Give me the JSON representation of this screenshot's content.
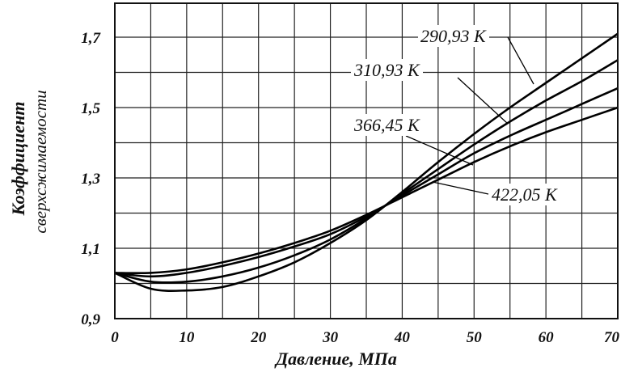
{
  "chart_data": {
    "type": "line",
    "xlabel": "Давление, МПа",
    "ylabel_line1": "Коэффициент",
    "ylabel_line2": "сверхсжимаемости",
    "xlim": [
      0,
      70
    ],
    "ylim": [
      0.9,
      1.75
    ],
    "xticks": [
      0,
      10,
      20,
      30,
      40,
      50,
      60,
      70
    ],
    "xtick_labels": [
      "0",
      "10",
      "20",
      "30",
      "40",
      "50",
      "60",
      "70"
    ],
    "yticks": [
      0.9,
      1.1,
      1.3,
      1.5,
      1.7
    ],
    "ytick_labels": [
      "0,9",
      "1,1",
      "1,3",
      "1,5",
      "1,7"
    ],
    "grid": true,
    "x": [
      0,
      5,
      10,
      15,
      20,
      25,
      30,
      35,
      40,
      45,
      50,
      55,
      60,
      65,
      70
    ],
    "series": [
      {
        "name": "290,93 К",
        "values": [
          1.03,
          0.985,
          0.98,
          0.99,
          1.02,
          1.06,
          1.115,
          1.18,
          1.26,
          1.345,
          1.425,
          1.5,
          1.57,
          1.64,
          1.71
        ]
      },
      {
        "name": "310,93 К",
        "values": [
          1.03,
          1.005,
          1.005,
          1.02,
          1.045,
          1.08,
          1.125,
          1.185,
          1.255,
          1.325,
          1.395,
          1.46,
          1.52,
          1.575,
          1.635
        ]
      },
      {
        "name": "366,45 К",
        "values": [
          1.03,
          1.02,
          1.03,
          1.05,
          1.075,
          1.105,
          1.14,
          1.19,
          1.25,
          1.31,
          1.37,
          1.42,
          1.465,
          1.51,
          1.555
        ]
      },
      {
        "name": "422,05 К",
        "values": [
          1.03,
          1.03,
          1.04,
          1.06,
          1.085,
          1.115,
          1.15,
          1.195,
          1.245,
          1.295,
          1.345,
          1.39,
          1.43,
          1.465,
          1.5
        ]
      }
    ]
  }
}
